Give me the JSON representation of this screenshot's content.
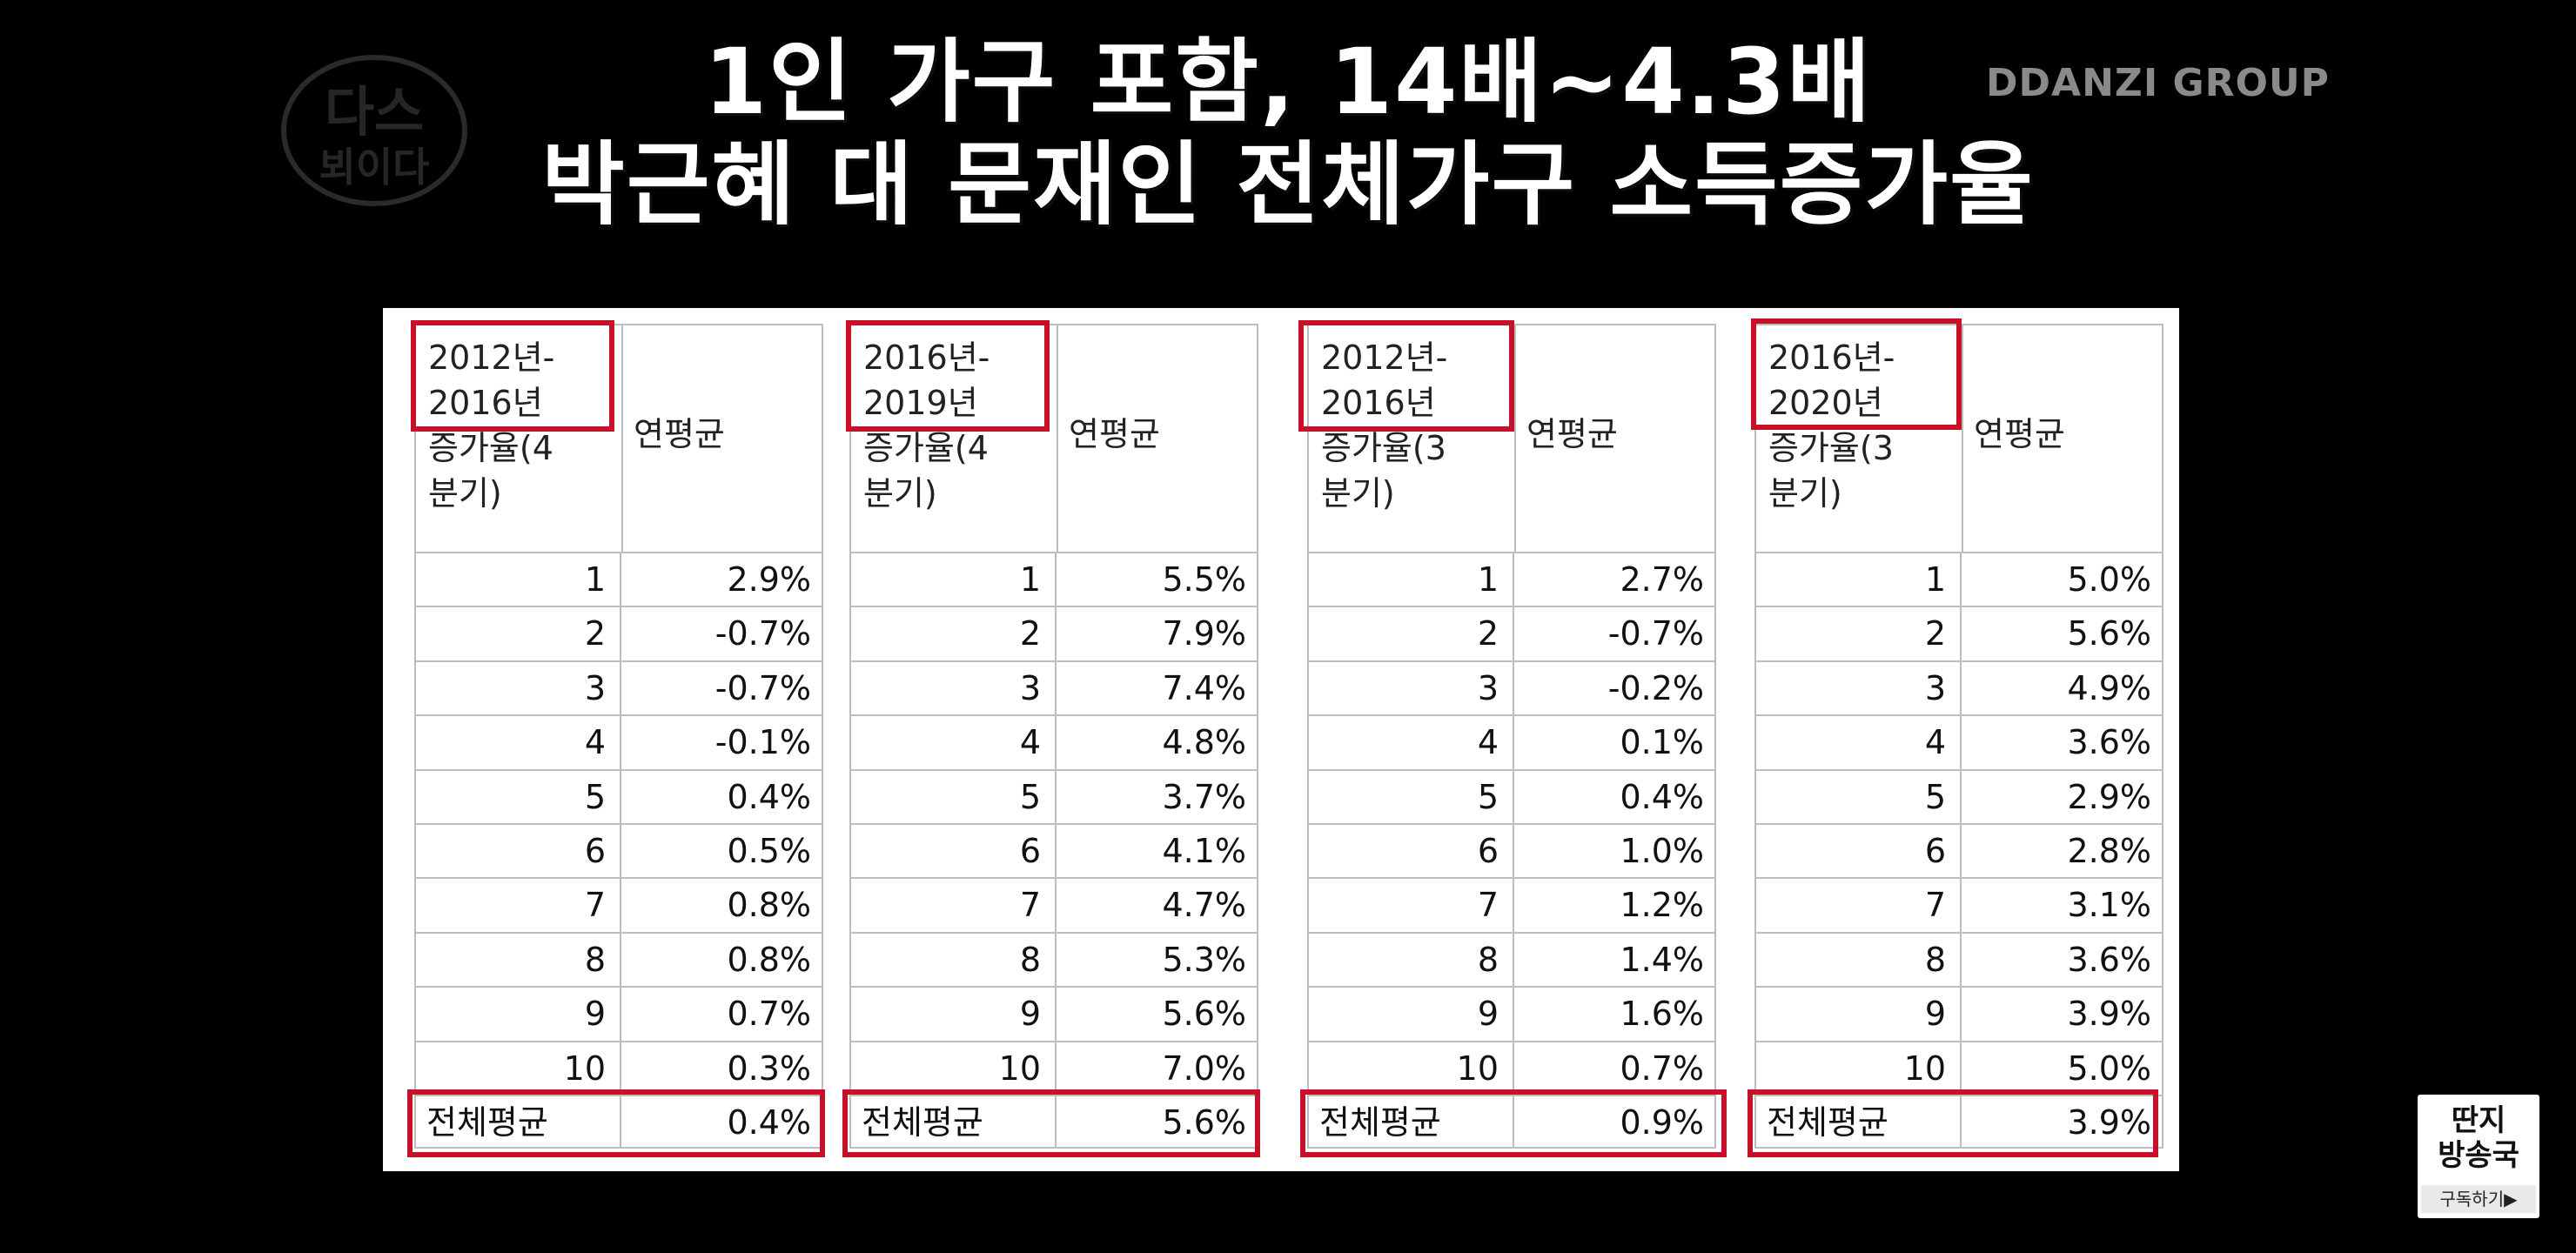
{
  "headline": {
    "line1": "1인 가구 포함, 14배~4.3배",
    "line2": "박근혜 대 문재인 전체가구 소득증가율"
  },
  "brand_watermark": "DDANZI GROUP",
  "channel_logo": {
    "text_top": "다스",
    "text_bottom": "뵈이다"
  },
  "tables": [
    {
      "period_label": "2012년-2016년",
      "period_line1": "2012년-",
      "period_line2": "2016년",
      "metric_line1": "증가율(4",
      "metric_line2": "분기)",
      "avg_header": "연평균",
      "rows": [
        {
          "n": "1",
          "v": "2.9%"
        },
        {
          "n": "2",
          "v": "-0.7%"
        },
        {
          "n": "3",
          "v": "-0.7%"
        },
        {
          "n": "4",
          "v": "-0.1%"
        },
        {
          "n": "5",
          "v": "0.4%"
        },
        {
          "n": "6",
          "v": "0.5%"
        },
        {
          "n": "7",
          "v": "0.8%"
        },
        {
          "n": "8",
          "v": "0.8%"
        },
        {
          "n": "9",
          "v": "0.7%"
        },
        {
          "n": "10",
          "v": "0.3%"
        }
      ],
      "total_label": "전체평균",
      "total_value": "0.4%"
    },
    {
      "period_line1": "2016년-",
      "period_line2": "2019년",
      "metric_line1": "증가율(4",
      "metric_line2": "분기)",
      "avg_header": "연평균",
      "rows": [
        {
          "n": "1",
          "v": "5.5%"
        },
        {
          "n": "2",
          "v": "7.9%"
        },
        {
          "n": "3",
          "v": "7.4%"
        },
        {
          "n": "4",
          "v": "4.8%"
        },
        {
          "n": "5",
          "v": "3.7%"
        },
        {
          "n": "6",
          "v": "4.1%"
        },
        {
          "n": "7",
          "v": "4.7%"
        },
        {
          "n": "8",
          "v": "5.3%"
        },
        {
          "n": "9",
          "v": "5.6%"
        },
        {
          "n": "10",
          "v": "7.0%"
        }
      ],
      "total_label": "전체평균",
      "total_value": "5.6%"
    },
    {
      "period_line1": "2012년-",
      "period_line2": "2016년",
      "metric_line1": "증가율(3",
      "metric_line2": "분기)",
      "avg_header": "연평균",
      "rows": [
        {
          "n": "1",
          "v": "2.7%"
        },
        {
          "n": "2",
          "v": "-0.7%"
        },
        {
          "n": "3",
          "v": "-0.2%"
        },
        {
          "n": "4",
          "v": "0.1%"
        },
        {
          "n": "5",
          "v": "0.4%"
        },
        {
          "n": "6",
          "v": "1.0%"
        },
        {
          "n": "7",
          "v": "1.2%"
        },
        {
          "n": "8",
          "v": "1.4%"
        },
        {
          "n": "9",
          "v": "1.6%"
        },
        {
          "n": "10",
          "v": "0.7%"
        }
      ],
      "total_label": "전체평균",
      "total_value": "0.9%"
    },
    {
      "period_line1": "2016년-",
      "period_line2": "2020년",
      "metric_line1": "증가율(3",
      "metric_line2": "분기)",
      "avg_header": "연평균",
      "rows": [
        {
          "n": "1",
          "v": "5.0%"
        },
        {
          "n": "2",
          "v": "5.6%"
        },
        {
          "n": "3",
          "v": "4.9%"
        },
        {
          "n": "4",
          "v": "3.6%"
        },
        {
          "n": "5",
          "v": "2.9%"
        },
        {
          "n": "6",
          "v": "2.8%"
        },
        {
          "n": "7",
          "v": "3.1%"
        },
        {
          "n": "8",
          "v": "3.6%"
        },
        {
          "n": "9",
          "v": "3.9%"
        },
        {
          "n": "10",
          "v": "5.0%"
        }
      ],
      "total_label": "전체평균",
      "total_value": "3.9%"
    }
  ],
  "subscribe_badge": {
    "title_line1": "딴지",
    "title_line2": "방송국",
    "cta": "구독하기▶"
  },
  "colors": {
    "highlight_red": "#c7102a",
    "background": "#000000"
  }
}
